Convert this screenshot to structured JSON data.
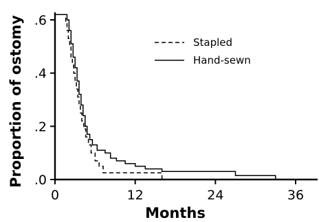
{
  "chart_data": {
    "type": "line",
    "subtype": "kaplan-meier-step",
    "xlabel": "Months",
    "ylabel": "Proportion of ostomy",
    "xlim": [
      0,
      38
    ],
    "ylim": [
      0,
      0.64
    ],
    "xticks": [
      0,
      12,
      24,
      36
    ],
    "xtick_labels": [
      "0",
      "12",
      "24",
      "36"
    ],
    "yticks": [
      0,
      0.2,
      0.4,
      0.6
    ],
    "ytick_labels": [
      ".0",
      ".2",
      ".4",
      ".6"
    ],
    "legend_position": "top-right",
    "series": [
      {
        "name": "Stapled",
        "style": "dashed",
        "points": [
          [
            0,
            0.62
          ],
          [
            1.5,
            0.62
          ],
          [
            1.6,
            0.59
          ],
          [
            1.8,
            0.56
          ],
          [
            2.0,
            0.53
          ],
          [
            2.2,
            0.5
          ],
          [
            2.4,
            0.46
          ],
          [
            2.6,
            0.43
          ],
          [
            2.8,
            0.4
          ],
          [
            3.0,
            0.37
          ],
          [
            3.2,
            0.34
          ],
          [
            3.4,
            0.31
          ],
          [
            3.6,
            0.28
          ],
          [
            3.8,
            0.25
          ],
          [
            4.0,
            0.22
          ],
          [
            4.3,
            0.19
          ],
          [
            4.6,
            0.16
          ],
          [
            5.0,
            0.13
          ],
          [
            5.4,
            0.1
          ],
          [
            6.0,
            0.07
          ],
          [
            6.6,
            0.05
          ],
          [
            7.2,
            0.025
          ],
          [
            16.0,
            0.025
          ],
          [
            16.0,
            0.0
          ]
        ]
      },
      {
        "name": "Hand-sewn",
        "style": "solid",
        "points": [
          [
            0,
            0.62
          ],
          [
            1.6,
            0.62
          ],
          [
            1.8,
            0.6
          ],
          [
            2.1,
            0.56
          ],
          [
            2.4,
            0.51
          ],
          [
            2.7,
            0.46
          ],
          [
            3.0,
            0.42
          ],
          [
            3.3,
            0.37
          ],
          [
            3.6,
            0.32
          ],
          [
            3.9,
            0.28
          ],
          [
            4.2,
            0.24
          ],
          [
            4.5,
            0.2
          ],
          [
            4.8,
            0.17
          ],
          [
            5.2,
            0.15
          ],
          [
            5.6,
            0.13
          ],
          [
            6.3,
            0.11
          ],
          [
            7.5,
            0.1
          ],
          [
            8.3,
            0.08
          ],
          [
            9.2,
            0.07
          ],
          [
            10.5,
            0.06
          ],
          [
            12.0,
            0.05
          ],
          [
            13.5,
            0.04
          ],
          [
            16.0,
            0.03
          ],
          [
            20.0,
            0.03
          ],
          [
            27.0,
            0.015
          ],
          [
            33.0,
            0.015
          ],
          [
            33.0,
            0.0
          ]
        ]
      }
    ]
  }
}
